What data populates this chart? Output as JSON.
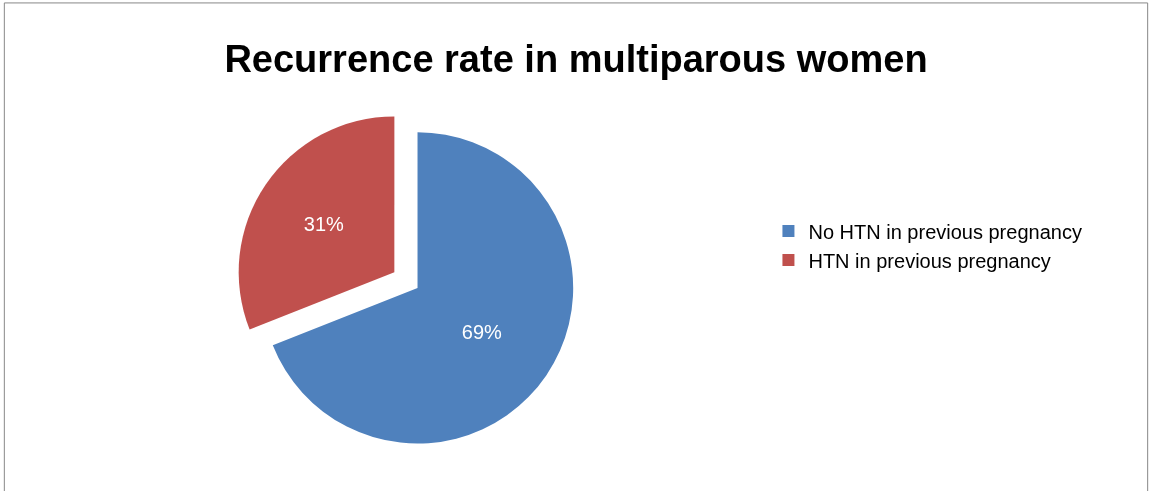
{
  "chart_data": {
    "type": "pie",
    "title": "Recurrence rate in multiparous women",
    "categories": [
      "No HTN in previous pregnancy",
      "HTN in previous pregnancy"
    ],
    "values": [
      69,
      31
    ],
    "colors": [
      "#4f81bd",
      "#c0504d"
    ],
    "value_labels": [
      "69%",
      "31%"
    ],
    "legend": "right"
  }
}
